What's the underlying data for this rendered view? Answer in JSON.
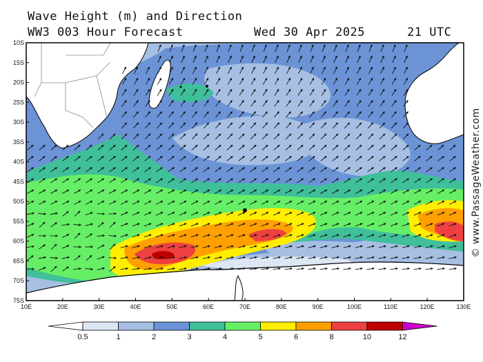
{
  "header": {
    "title_line1": "Wave Height (m) and Direction",
    "title_line2": "WW3 003 Hour Forecast",
    "date": "Wed 30 Apr 2025",
    "time": "21 UTC"
  },
  "watermark": "© www.PassageWeather.com",
  "axes": {
    "lat_labels": [
      "10S",
      "15S",
      "20S",
      "25S",
      "30S",
      "35S",
      "40S",
      "45S",
      "50S",
      "55S",
      "60S",
      "65S",
      "70S",
      "75S"
    ],
    "lon_labels": [
      "10E",
      "20E",
      "30E",
      "40E",
      "50E",
      "60E",
      "70E",
      "80E",
      "90E",
      "100E",
      "110E",
      "120E",
      "130E"
    ],
    "lat_range": [
      -10,
      -75
    ],
    "lon_range": [
      10,
      130
    ]
  },
  "colorbar": {
    "labels": [
      "0.5",
      "1",
      "2",
      "3",
      "4",
      "5",
      "6",
      "8",
      "10",
      "12"
    ],
    "colors": [
      "#ffffff",
      "#dde6f3",
      "#a6bfe3",
      "#6b93d6",
      "#3fbf9a",
      "#66ee66",
      "#ffee00",
      "#ffa000",
      "#ee4040",
      "#c00000",
      "#cc00cc"
    ]
  },
  "colors": {
    "land": "#ffffff",
    "ocean_low": "#a6bfe3",
    "ocean_mid": "#6b93d6",
    "coastline": "#000000"
  },
  "wave_direction": "northeast to east"
}
